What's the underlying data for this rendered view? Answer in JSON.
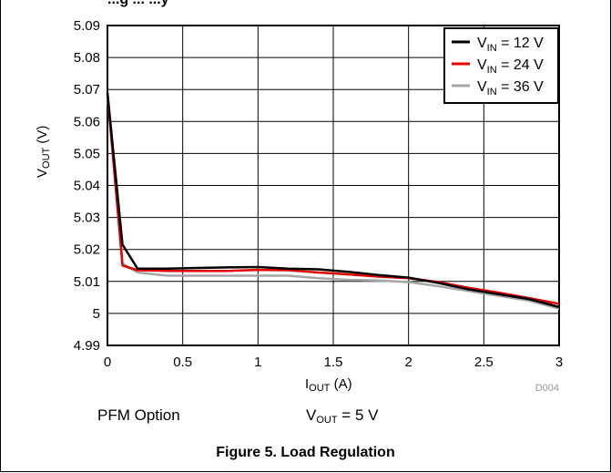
{
  "header_fragment": "...g ... ...y",
  "chart_data": {
    "type": "line",
    "title": "",
    "xlabel": "I_OUT (A)",
    "ylabel": "V_OUT (V)",
    "xlim": [
      0,
      3
    ],
    "ylim": [
      4.99,
      5.09
    ],
    "x_ticks": [
      "0",
      "0.5",
      "1",
      "1.5",
      "2",
      "2.5",
      "3"
    ],
    "y_ticks": [
      "4.99",
      "5",
      "5.01",
      "5.02",
      "5.03",
      "5.04",
      "5.05",
      "5.06",
      "5.07",
      "5.08",
      "5.09"
    ],
    "grid": true,
    "legend_position": "top-right",
    "series": [
      {
        "name": "V_IN = 12 V",
        "color": "#000000",
        "x": [
          0,
          0.1,
          0.2,
          0.4,
          0.6,
          0.8,
          1.0,
          1.2,
          1.4,
          1.6,
          1.8,
          2.0,
          2.2,
          2.4,
          2.6,
          2.8,
          3.0
        ],
        "y": [
          5.069,
          5.0215,
          5.014,
          5.014,
          5.0142,
          5.0144,
          5.0145,
          5.014,
          5.0138,
          5.013,
          5.012,
          5.0112,
          5.0095,
          5.0075,
          5.006,
          5.0045,
          5.002
        ]
      },
      {
        "name": "V_IN = 24 V",
        "color": "#e00000",
        "x": [
          0,
          0.1,
          0.2,
          0.4,
          0.6,
          0.8,
          1.0,
          1.2,
          1.4,
          1.6,
          1.8,
          2.0,
          2.2,
          2.4,
          2.6,
          2.8,
          3.0
        ],
        "y": [
          5.069,
          5.015,
          5.0135,
          5.0133,
          5.0133,
          5.0133,
          5.0136,
          5.0135,
          5.0128,
          5.0122,
          5.0115,
          5.011,
          5.0098,
          5.008,
          5.0065,
          5.0048,
          5.003
        ]
      },
      {
        "name": "V_IN = 36 V",
        "color": "#a6a6a6",
        "x": [
          0,
          0.1,
          0.2,
          0.4,
          0.6,
          0.8,
          1.0,
          1.2,
          1.4,
          1.6,
          1.8,
          2.0,
          2.2,
          2.4,
          2.6,
          2.8,
          3.0
        ],
        "y": [
          5.068,
          5.0155,
          5.0128,
          5.0118,
          5.0118,
          5.0118,
          5.0118,
          5.0118,
          5.011,
          5.0105,
          5.0103,
          5.0098,
          5.0085,
          5.007,
          5.0055,
          5.004,
          5.0015
        ]
      }
    ],
    "legend": [
      "V_IN = 12 V",
      "V_IN = 24 V",
      "V_IN = 36 V"
    ],
    "source_id": "D004"
  },
  "notes": {
    "option": "PFM Option",
    "vout": "V_OUT = 5 V"
  },
  "figure_title": "Figure 5. Load Regulation"
}
